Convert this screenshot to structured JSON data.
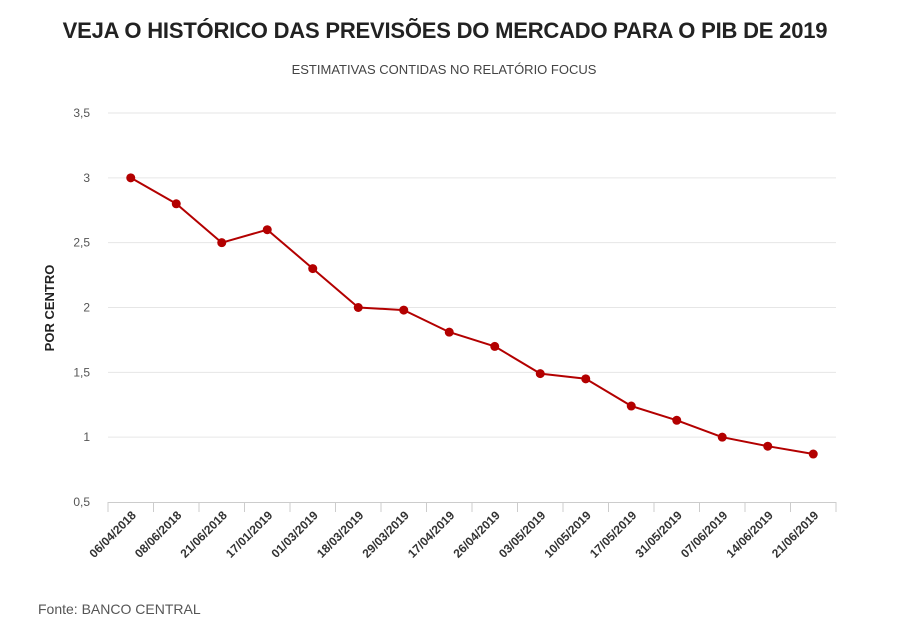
{
  "chart_data": {
    "type": "line",
    "title": "VEJA O HISTÓRICO DAS PREVISÕES DO MERCADO PARA O PIB DE 2019",
    "subtitle": "ESTIMATIVAS CONTIDAS NO RELATÓRIO FOCUS",
    "ylabel": "POR CENTRO",
    "xlabel": "",
    "ylim": [
      0.5,
      3.5
    ],
    "y_ticks": [
      "0,5",
      "1",
      "1,5",
      "2",
      "2,5",
      "3",
      "3,5"
    ],
    "y_tick_values": [
      0.5,
      1,
      1.5,
      2,
      2.5,
      3,
      3.5
    ],
    "grid": true,
    "categories": [
      "06/04/2018",
      "08/06/2018",
      "21/06/2018",
      "17/01/2019",
      "01/03/2019",
      "18/03/2019",
      "29/03/2019",
      "17/04/2019",
      "26/04/2019",
      "03/05/2019",
      "10/05/2019",
      "17/05/2019",
      "31/05/2019",
      "07/06/2019",
      "14/06/2019",
      "21/06/2019"
    ],
    "values": [
      3.0,
      2.8,
      2.5,
      2.6,
      2.3,
      2.0,
      1.98,
      1.81,
      1.7,
      1.49,
      1.45,
      1.24,
      1.13,
      1.0,
      0.93,
      0.87
    ],
    "line_color": "#b30000"
  },
  "footer": {
    "source": "Fonte: BANCO CENTRAL"
  }
}
